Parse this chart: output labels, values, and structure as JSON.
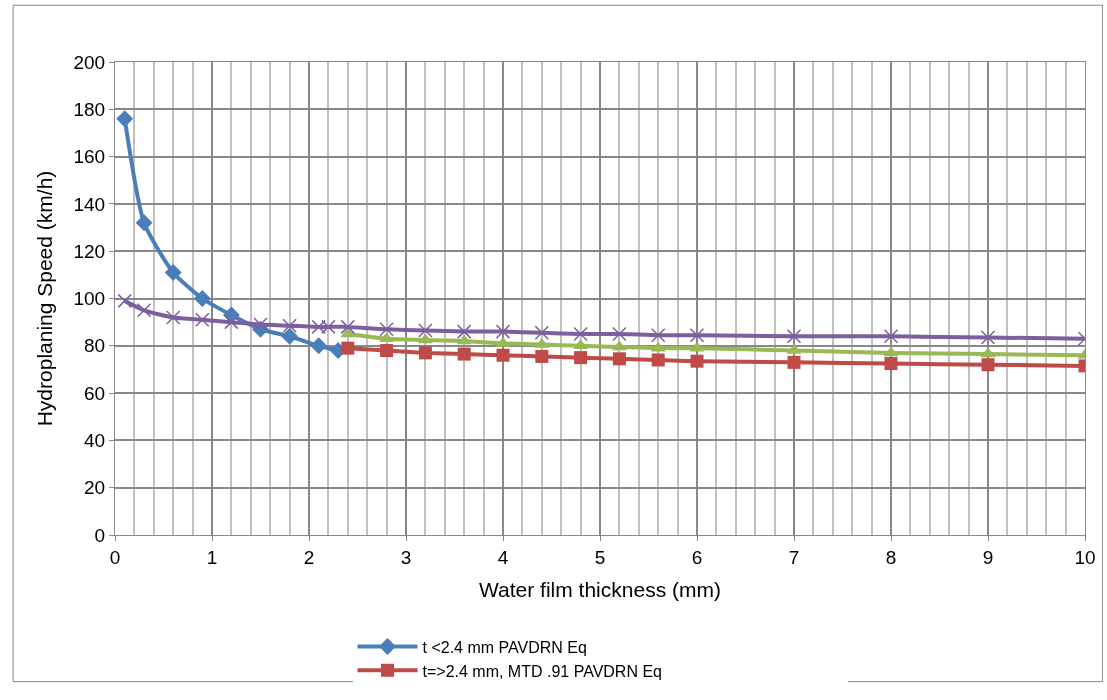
{
  "chart_data": {
    "type": "line",
    "xlabel": "Water film thickness (mm)",
    "ylabel": "Hydroplaning Speed (km/h)",
    "xlim": [
      0,
      10
    ],
    "xticks": [
      0,
      1,
      2,
      3,
      4,
      5,
      6,
      7,
      8,
      9,
      10
    ],
    "ylim": [
      0,
      200
    ],
    "yticks": [
      0,
      20,
      40,
      60,
      80,
      100,
      120,
      140,
      160,
      180,
      200
    ],
    "grid": true,
    "legend": "bottom",
    "series": [
      {
        "name": "t <2.4 mm PAVDRN Eq",
        "color": "#4a7ebb",
        "marker": "diamond",
        "x": [
          0.1,
          0.3,
          0.6,
          0.9,
          1.2,
          1.5,
          1.8,
          2.1,
          2.3
        ],
        "values": [
          176,
          132,
          111,
          100,
          93,
          87,
          84,
          80,
          78
        ]
      },
      {
        "name": "t=>2.4 mm, MTD .91 PAVDRN Eq",
        "color": "#be4b48",
        "marker": "square",
        "x": [
          2.4,
          2.8,
          3.2,
          3.6,
          4,
          4.4,
          4.8,
          5.2,
          5.6,
          6,
          7,
          8,
          9,
          10
        ],
        "values": [
          79,
          78,
          77,
          76.5,
          76,
          75.5,
          75,
          74.5,
          74,
          73.5,
          73,
          72.5,
          72,
          71.5
        ]
      },
      {
        "color": "#98b954",
        "marker": "triangle",
        "x": [
          2.4,
          2.8,
          3.2,
          3.6,
          4,
          4.4,
          4.8,
          5.2,
          5.6,
          6,
          7,
          8,
          9,
          10
        ],
        "values": [
          85,
          83,
          82.5,
          82,
          81,
          80.5,
          80,
          79.5,
          79,
          79,
          78,
          77,
          76.5,
          76
        ]
      },
      {
        "color": "#7d5fa0",
        "marker": "cross",
        "x": [
          0.1,
          0.3,
          0.6,
          0.9,
          1.2,
          1.5,
          1.8,
          2.1,
          2.2,
          2.4,
          2.8,
          3.2,
          3.6,
          4,
          4.4,
          4.8,
          5.2,
          5.6,
          6,
          7,
          8,
          9,
          10
        ],
        "values": [
          99,
          95,
          92,
          91,
          90,
          89,
          88.5,
          88,
          88,
          88,
          87,
          86.5,
          86,
          86,
          85.5,
          85,
          85,
          84.5,
          84.5,
          84,
          84,
          83.5,
          83
        ]
      }
    ]
  }
}
